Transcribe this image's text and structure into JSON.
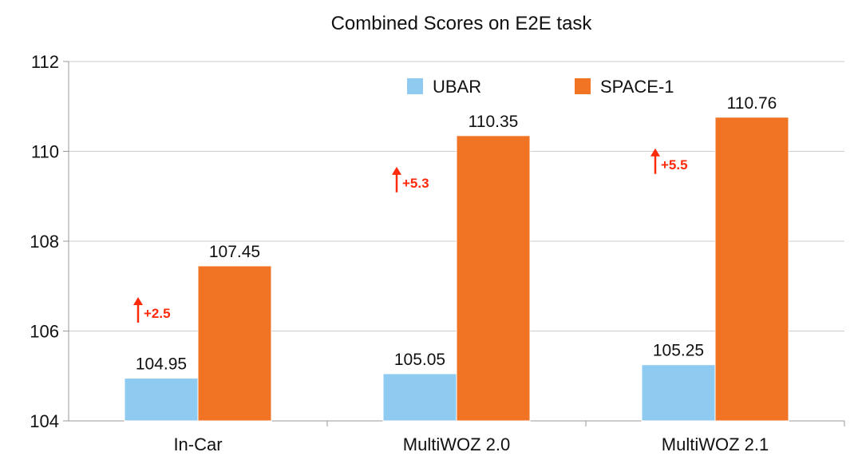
{
  "chart_data": {
    "type": "bar",
    "title": "Combined Scores on E2E task",
    "xlabel": "",
    "ylabel": "",
    "categories": [
      "In-Car",
      "MultiWOZ 2.0",
      "MultiWOZ 2.1"
    ],
    "series": [
      {
        "name": "UBAR",
        "values": [
          104.95,
          105.05,
          105.25
        ],
        "color": "#8fcaf0"
      },
      {
        "name": "SPACE-1",
        "values": [
          107.45,
          110.35,
          110.76
        ],
        "color": "#f07424"
      }
    ],
    "data_labels": [
      [
        "104.95",
        "105.05",
        "105.25"
      ],
      [
        "107.45",
        "110.35",
        "110.76"
      ]
    ],
    "ylim": [
      104,
      112
    ],
    "yticks": [
      104,
      106,
      108,
      110,
      112
    ],
    "grid": true,
    "legend_position": "top",
    "annotations": [
      "+2.5",
      "+5.3",
      "+5.5"
    ],
    "annotation_color": "#ff2a0a",
    "gridline_color": "#cccccc",
    "axis_color": "#9a9a9a"
  }
}
